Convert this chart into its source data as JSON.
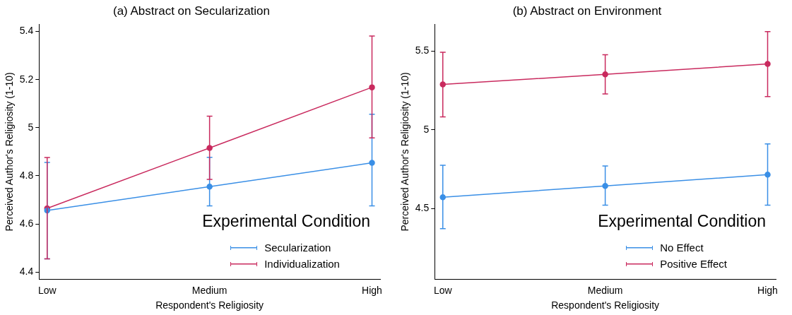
{
  "chart_data": [
    {
      "type": "line",
      "title": "(a) Abstract on Secularization",
      "xlabel": "Respondent's Religiosity",
      "ylabel": "Perceived Author's Religiosity (1-10)",
      "legend_title": "Experimental Condition",
      "legend": "bottom right",
      "marker": "circle",
      "grid": false,
      "categories": [
        "Low",
        "Medium",
        "High"
      ],
      "ylim": [
        4.37,
        5.43
      ],
      "yticks": [
        4.4,
        4.6,
        4.8,
        5,
        5.2,
        5.4
      ],
      "series": [
        {
          "name": "Secularization",
          "color": "#3a8fe6",
          "values": [
            4.656,
            4.755,
            4.854
          ],
          "errors": [
            [
              4.455,
              4.856
            ],
            [
              4.675,
              4.877
            ],
            [
              4.675,
              5.056
            ]
          ]
        },
        {
          "name": "Individualization",
          "color": "#c92a5e",
          "values": [
            4.665,
            4.916,
            5.168
          ],
          "errors": [
            [
              4.455,
              4.876
            ],
            [
              4.785,
              5.048
            ],
            [
              4.958,
              5.381
            ]
          ]
        }
      ]
    },
    {
      "type": "line",
      "title": "(b) Abstract on Environment",
      "xlabel": "Respondent's Religiosity",
      "ylabel": "Perceived Author's Religiosity (1-10)",
      "legend_title": "Experimental Condition",
      "legend": "bottom right",
      "marker": "circle",
      "grid": false,
      "categories": [
        "Low",
        "Medium",
        "High"
      ],
      "ylim": [
        4.05,
        5.67
      ],
      "yticks": [
        4.5,
        5,
        5.5
      ],
      "series": [
        {
          "name": "No Effect",
          "color": "#3a8fe6",
          "values": [
            4.571,
            4.643,
            4.715
          ],
          "errors": [
            [
              4.372,
              4.774
            ],
            [
              4.521,
              4.77
            ],
            [
              4.521,
              4.91
            ]
          ]
        },
        {
          "name": "Positive Effect",
          "color": "#c92a5e",
          "values": [
            5.288,
            5.352,
            5.418
          ],
          "errors": [
            [
              5.082,
              5.492
            ],
            [
              5.228,
              5.477
            ],
            [
              5.211,
              5.624
            ]
          ]
        }
      ]
    }
  ]
}
